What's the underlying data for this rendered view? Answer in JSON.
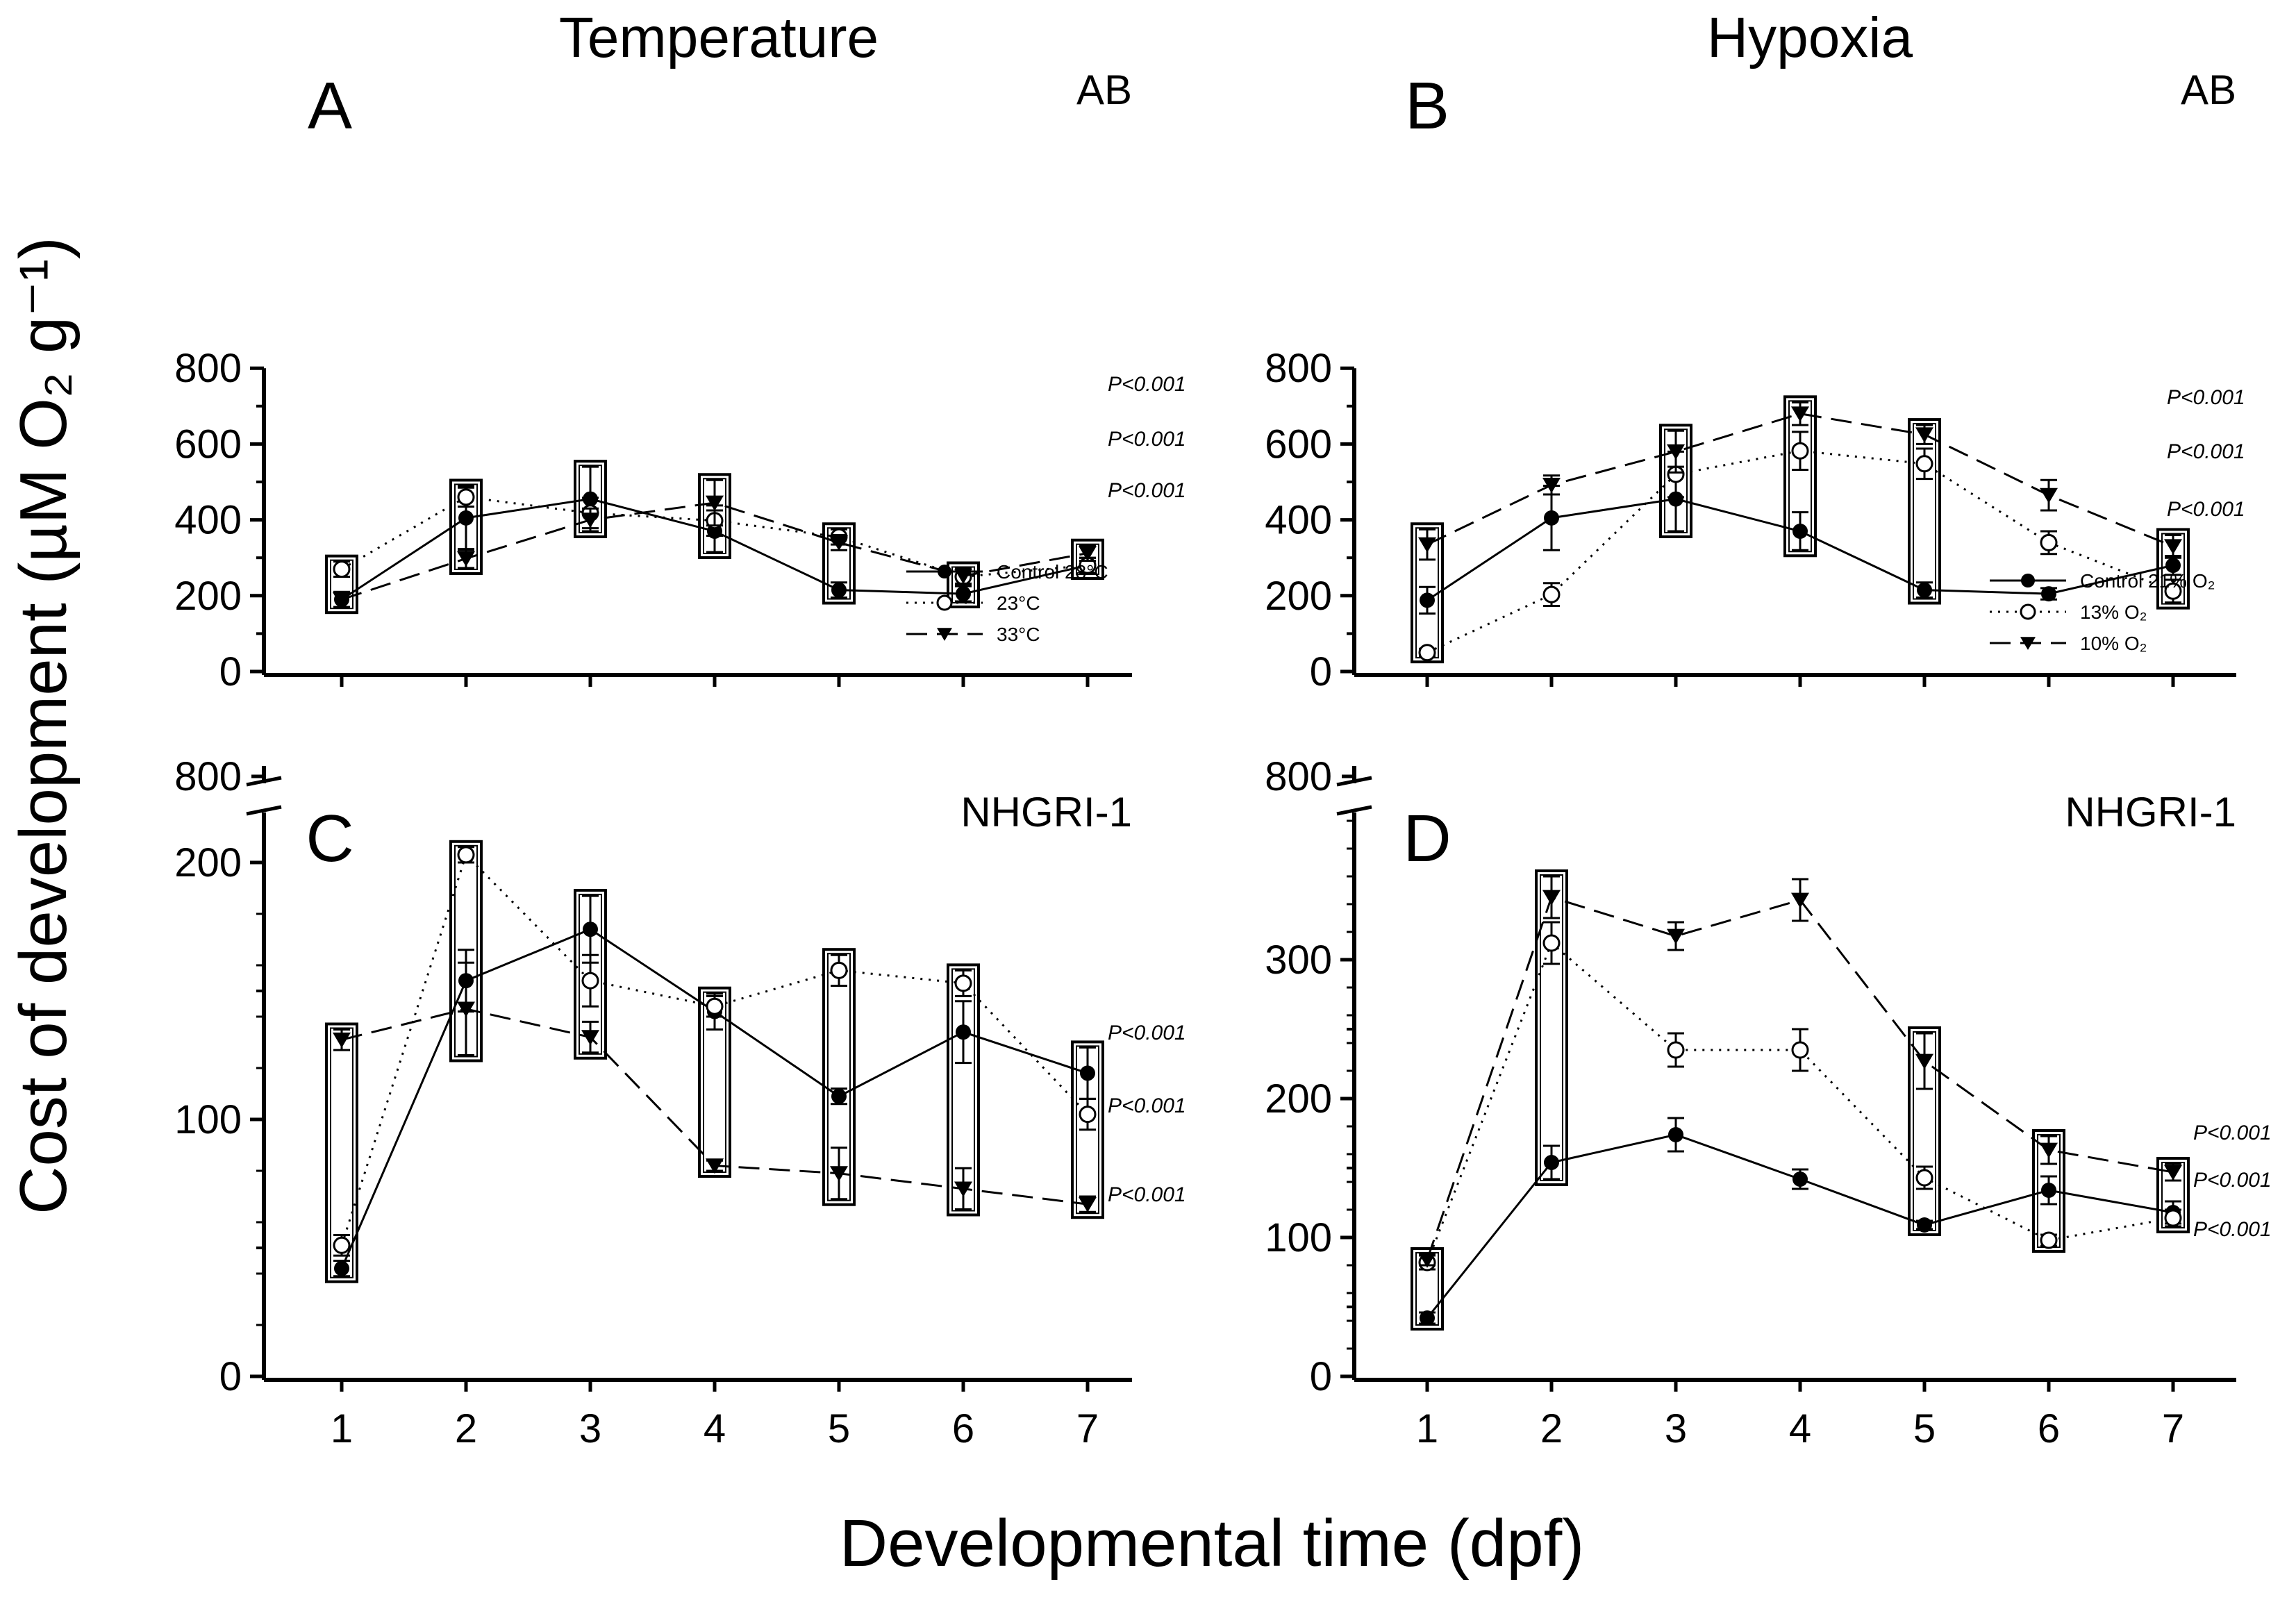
{
  "figure": {
    "column_titles": [
      "Temperature",
      "Hypoxia"
    ],
    "ylabel": "Cost of development (µM O₂ g⁻¹)",
    "xlabel": "Developmental time (dpf)"
  },
  "chart_data": [
    {
      "panel": "A",
      "type": "line",
      "strain": "AB",
      "x": [
        1,
        2,
        3,
        4,
        5,
        6,
        7
      ],
      "ylim": [
        0,
        800
      ],
      "yticks": [
        0,
        200,
        400,
        600,
        800
      ],
      "series": [
        {
          "name": "Control 28°C",
          "marker": "filled-circle",
          "line": "solid",
          "values": [
            190,
            405,
            455,
            370,
            215,
            205,
            280
          ],
          "errors": [
            20,
            85,
            85,
            55,
            20,
            20,
            20
          ]
        },
        {
          "name": "23°C",
          "marker": "open-circle",
          "line": "dotted",
          "values": [
            270,
            460,
            418,
            398,
            355,
            250,
            280
          ],
          "errors": [
            20,
            25,
            40,
            40,
            20,
            20,
            20
          ]
        },
        {
          "name": "33°C",
          "marker": "filled-triangle",
          "line": "dashed",
          "values": [
            190,
            298,
            400,
            445,
            340,
            252,
            312
          ],
          "errors": [
            20,
            25,
            30,
            60,
            20,
            20,
            20
          ]
        }
      ],
      "boxes": [
        1,
        2,
        3,
        4,
        5,
        6,
        7
      ],
      "p_values": [
        "P<0.001",
        "P<0.001",
        "P<0.001"
      ]
    },
    {
      "panel": "B",
      "type": "line",
      "strain": "AB",
      "x": [
        1,
        2,
        3,
        4,
        5,
        6,
        7
      ],
      "ylim": [
        0,
        800
      ],
      "yticks": [
        0,
        200,
        400,
        600,
        800
      ],
      "series": [
        {
          "name": "Control 21% O₂",
          "marker": "filled-circle",
          "line": "solid",
          "values": [
            188,
            405,
            455,
            370,
            215,
            205,
            280
          ],
          "errors": [
            35,
            85,
            85,
            50,
            20,
            15,
            25
          ]
        },
        {
          "name": "13% O₂",
          "marker": "open-circle",
          "line": "dotted",
          "values": [
            50,
            203,
            520,
            582,
            548,
            340,
            212
          ],
          "errors": [
            10,
            30,
            60,
            50,
            40,
            30,
            30
          ]
        },
        {
          "name": "10% O₂",
          "marker": "filled-triangle",
          "line": "dashed",
          "values": [
            335,
            492,
            580,
            680,
            625,
            465,
            330
          ],
          "errors": [
            40,
            25,
            55,
            30,
            25,
            40,
            30
          ]
        }
      ],
      "boxes": [
        1,
        3,
        4,
        5,
        7
      ],
      "p_values": [
        "P<0.001",
        "P<0.001",
        "P<0.001"
      ]
    },
    {
      "panel": "C",
      "type": "line",
      "strain": "NHGRI-1",
      "x": [
        1,
        2,
        3,
        4,
        5,
        6,
        7
      ],
      "ylim": [
        0,
        220
      ],
      "yticks": [
        0,
        100,
        200
      ],
      "axis_break_label": "800",
      "series": [
        {
          "name": "Control 28°C",
          "marker": "filled-circle",
          "line": "solid",
          "values": [
            42,
            154,
            174,
            142,
            109,
            134,
            118
          ],
          "errors": [
            3,
            12,
            13,
            7,
            3,
            12,
            10
          ]
        },
        {
          "name": "23°C",
          "marker": "open-circle",
          "line": "dotted",
          "values": [
            51,
            203,
            154,
            144,
            158,
            153,
            102
          ],
          "errors": [
            4,
            3,
            10,
            4,
            6,
            5,
            6
          ]
        },
        {
          "name": "33°C",
          "marker": "filled-triangle",
          "line": "dashed",
          "values": [
            131,
            143,
            132,
            82,
            79,
            73,
            67
          ],
          "errors": [
            4,
            18,
            6,
            2,
            10,
            8,
            3
          ]
        }
      ],
      "boxes": [
        1,
        2,
        3,
        4,
        5,
        6,
        7
      ],
      "p_values": [
        "P<0.001",
        "P<0.001",
        "P<0.001"
      ]
    },
    {
      "panel": "D",
      "type": "line",
      "strain": "NHGRI-1",
      "x": [
        1,
        2,
        3,
        4,
        5,
        6,
        7
      ],
      "ylim": [
        0,
        410
      ],
      "yticks": [
        0,
        100,
        200,
        300
      ],
      "axis_break_label": "800",
      "series": [
        {
          "name": "Control 21% O₂",
          "marker": "filled-circle",
          "line": "solid",
          "values": [
            42,
            154,
            174,
            142,
            109,
            134,
            118
          ],
          "errors": [
            4,
            12,
            12,
            7,
            3,
            10,
            8
          ]
        },
        {
          "name": "13% O₂",
          "marker": "open-circle",
          "line": "dotted",
          "values": [
            82,
            312,
            235,
            235,
            143,
            98,
            114
          ],
          "errors": [
            5,
            15,
            12,
            15,
            8,
            4,
            6
          ]
        },
        {
          "name": "10% O₂",
          "marker": "filled-triangle",
          "line": "dashed",
          "values": [
            84,
            345,
            317,
            343,
            227,
            163,
            147
          ],
          "errors": [
            4,
            15,
            10,
            15,
            20,
            10,
            6
          ]
        }
      ],
      "boxes": [
        1,
        2,
        5,
        6,
        7
      ],
      "p_values": [
        "P<0.001",
        "P<0.001",
        "P<0.001"
      ]
    }
  ]
}
